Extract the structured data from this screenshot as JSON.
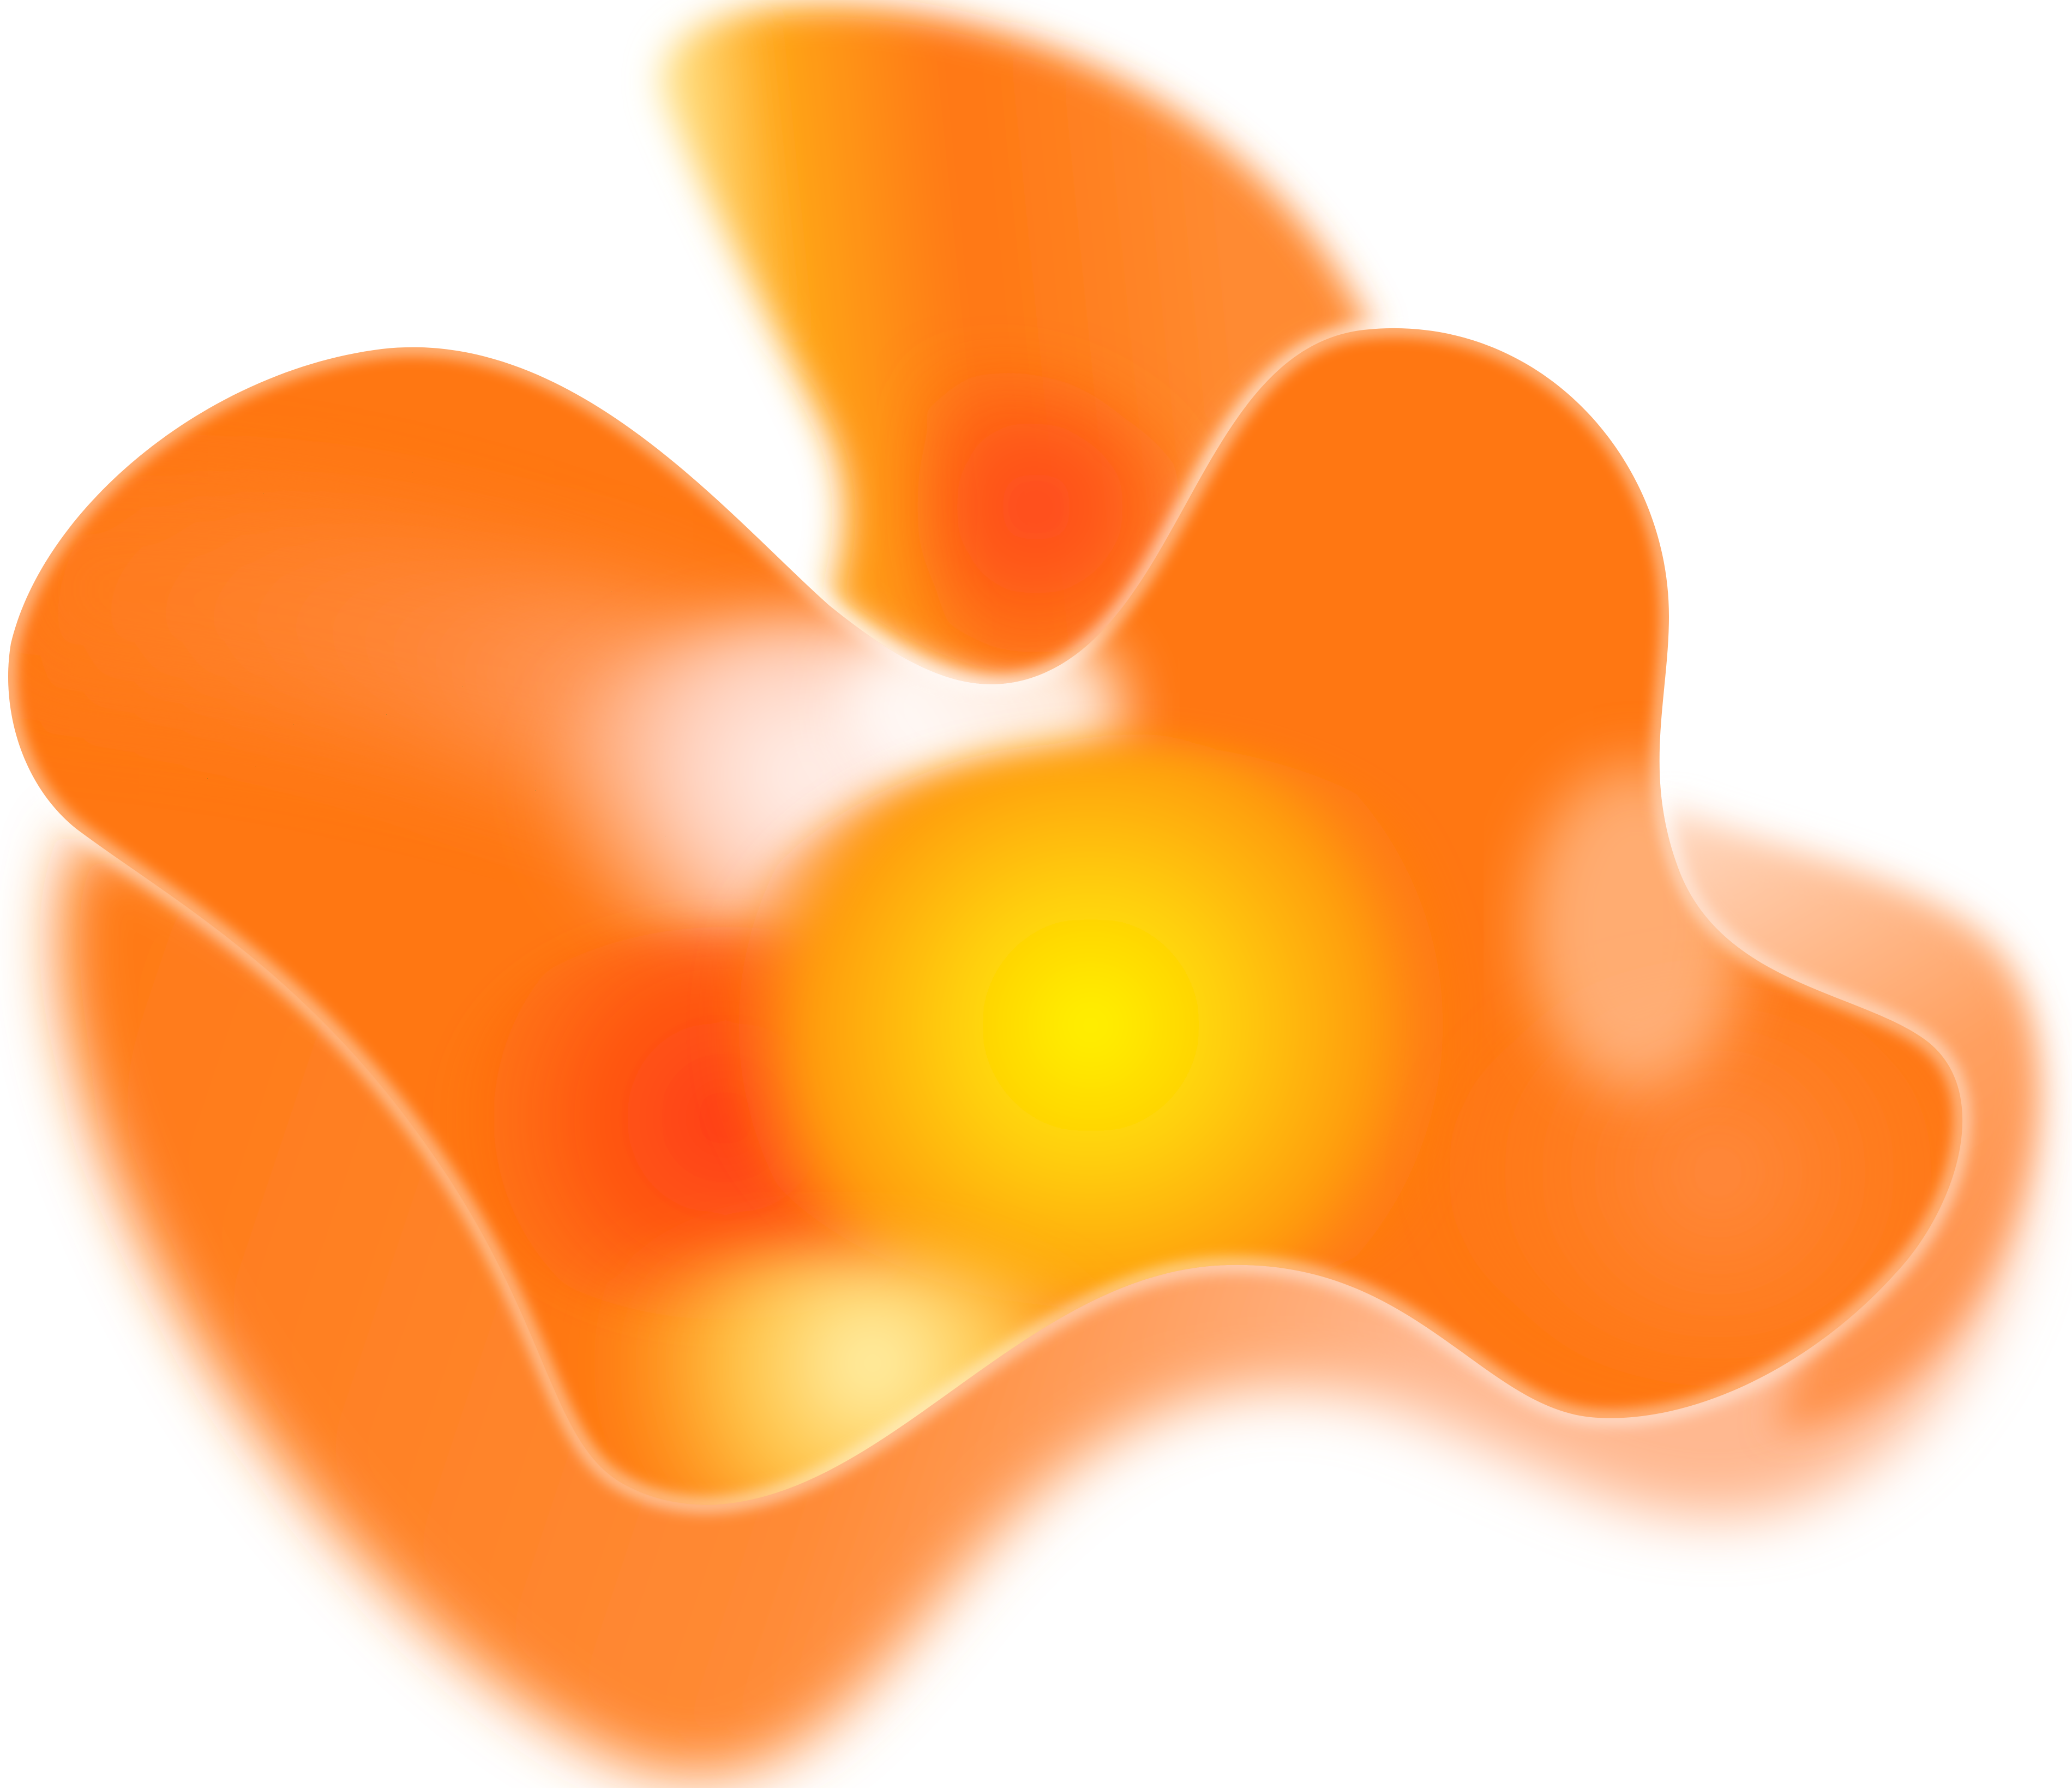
{
  "artwork": {
    "subject": "abstract-gradient-blob",
    "colors": {
      "background": "#ffffff",
      "orange": "#ff7712",
      "deep_orange": "#ff5a14",
      "red_orange": "#ff4420",
      "amber": "#ffa412",
      "yellow": "#fff200",
      "pale_yellow": "#fff3a8",
      "blush": "#ffd9cc"
    }
  }
}
